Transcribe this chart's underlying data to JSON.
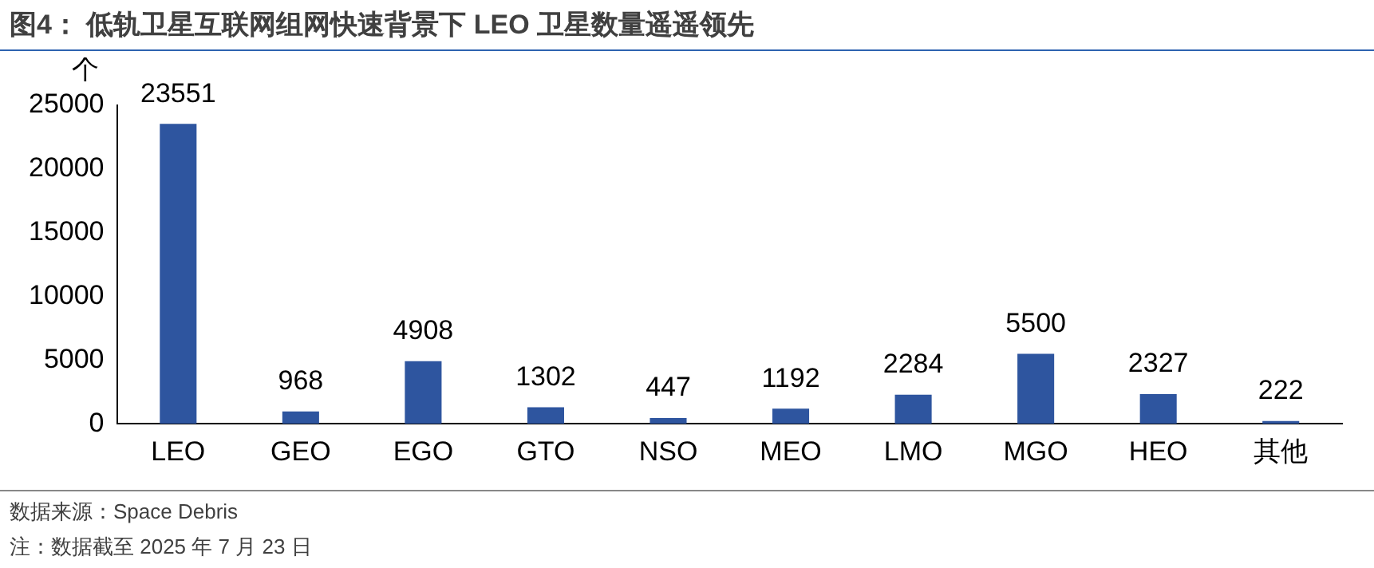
{
  "chart_data": {
    "type": "bar",
    "title": "图4： 低轨卫星互联网组网快速背景下 LEO 卫星数量遥遥领先",
    "ylabel": "个",
    "categories": [
      "LEO",
      "GEO",
      "EGO",
      "GTO",
      "NSO",
      "MEO",
      "LMO",
      "MGO",
      "HEO",
      "其他"
    ],
    "values": [
      23551,
      968,
      4908,
      1302,
      447,
      1192,
      2284,
      5500,
      2327,
      222
    ],
    "color": "#2e559f",
    "ylim": [
      0,
      25000
    ],
    "yticks": [
      0,
      5000,
      10000,
      15000,
      20000,
      25000
    ],
    "grid": false,
    "legend": false,
    "data_labels": true,
    "annotations": [
      "数据来源：Space Debris",
      "注：数据截至 2025 年 7 月 23 日"
    ]
  }
}
